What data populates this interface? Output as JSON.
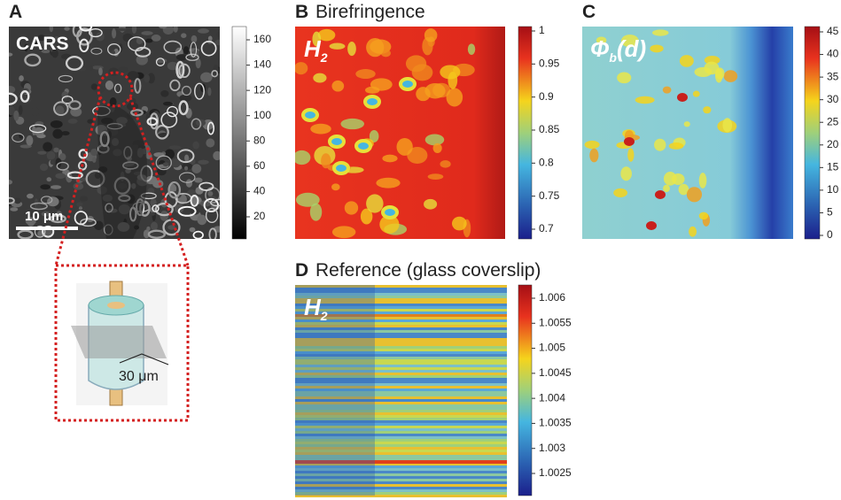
{
  "panels": {
    "a": {
      "label": "A",
      "image_label": "CARS",
      "scale_bar": "10 μm",
      "inset_scale": "30 μm",
      "colorbar_ticks": [
        "160",
        "140",
        "120",
        "100",
        "80",
        "60",
        "40",
        "20"
      ]
    },
    "b": {
      "label": "B",
      "title": "Birefringence",
      "image_label_main": "H",
      "image_label_sub": "2",
      "colorbar_ticks": [
        "1",
        "0.95",
        "0.9",
        "0.85",
        "0.8",
        "0.75",
        "0.7"
      ]
    },
    "c": {
      "label": "C",
      "image_label_main": "Φ",
      "image_label_sub": "b",
      "image_label_tail": "(d)",
      "colorbar_ticks": [
        "45",
        "40",
        "35",
        "30",
        "25",
        "20",
        "15",
        "10",
        "5",
        "0"
      ]
    },
    "d": {
      "label": "D",
      "title": "Reference (glass coverslip)",
      "image_label_main": "H",
      "image_label_sub": "2",
      "colorbar_ticks": [
        "1.006",
        "1.0055",
        "1.005",
        "1.0045",
        "1.004",
        "1.0035",
        "1.003",
        "1.0025"
      ]
    }
  }
}
